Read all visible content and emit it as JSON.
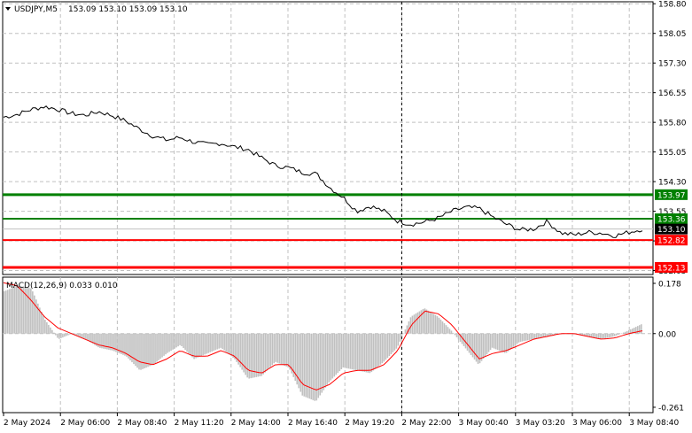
{
  "header": {
    "symbol": "USDJPY,M5",
    "ohlc": "153.09 153.10 153.09 153.10"
  },
  "colors": {
    "price_line": "#000000",
    "support_resistance_green": "#008000",
    "support_resistance_red": "#ff0000",
    "grid": "#c0c0c0",
    "histogram": "#c0c0c0",
    "signal_line": "#ff0000",
    "price_badge": "#000000"
  },
  "chart_data": [
    {
      "type": "line",
      "name": "price",
      "ylim": [
        151.95,
        158.85
      ],
      "yticks": [
        "158.80",
        "158.05",
        "157.30",
        "156.55",
        "155.80",
        "155.05",
        "154.30",
        "153.55",
        "152.80",
        "152.05"
      ],
      "xticks": [
        "2 May 2024",
        "2 May 06:00",
        "2 May 08:40",
        "2 May 11:20",
        "2 May 14:00",
        "2 May 16:40",
        "2 May 19:20",
        "2 May 22:00",
        "3 May 00:40",
        "3 May 03:20",
        "3 May 06:00",
        "3 May 08:40"
      ],
      "y": [
        155.93,
        156.0,
        156.12,
        156.2,
        156.13,
        156.02,
        155.98,
        156.07,
        155.97,
        155.83,
        155.63,
        155.45,
        155.35,
        155.42,
        155.3,
        155.24,
        155.27,
        155.18,
        155.11,
        154.9,
        154.71,
        154.65,
        154.53,
        154.5,
        154.15,
        153.9,
        153.55,
        153.68,
        153.55,
        153.3,
        153.22,
        153.28,
        153.38,
        153.55,
        153.65,
        153.62,
        153.4,
        153.22,
        153.08,
        153.1,
        153.29,
        153.0,
        152.95,
        153.02,
        153.0,
        152.93,
        153.02,
        153.1
      ],
      "levels": [
        {
          "value": "153.97",
          "color": "#008000"
        },
        {
          "value": "153.36",
          "color": "#008000"
        },
        {
          "value": "152.82",
          "color": "#ff0000"
        },
        {
          "value": "152.13",
          "color": "#ff0000"
        }
      ],
      "current_price": "153.10",
      "vertical_marker_at": "2 May 22:00"
    },
    {
      "type": "bar+line",
      "name": "macd",
      "label": "MACD(12,26,9) 0.033 0.010",
      "ylim": [
        -0.28,
        0.2
      ],
      "yticks": [
        "0.178",
        "0.00",
        "-0.261"
      ],
      "histogram": [
        0.15,
        0.17,
        0.16,
        0.05,
        -0.02,
        0.0,
        -0.02,
        -0.05,
        -0.06,
        -0.08,
        -0.13,
        -0.11,
        -0.07,
        -0.04,
        -0.09,
        -0.07,
        -0.05,
        -0.09,
        -0.16,
        -0.15,
        -0.1,
        -0.12,
        -0.22,
        -0.24,
        -0.17,
        -0.12,
        -0.13,
        -0.14,
        -0.1,
        -0.05,
        0.06,
        0.09,
        0.06,
        0.01,
        -0.05,
        -0.11,
        -0.05,
        -0.07,
        -0.03,
        -0.02,
        -0.01,
        0.0,
        0.0,
        -0.01,
        -0.02,
        -0.01,
        0.01,
        0.033
      ],
      "signal": [
        0.18,
        0.17,
        0.12,
        0.06,
        0.02,
        0.0,
        -0.02,
        -0.04,
        -0.05,
        -0.07,
        -0.1,
        -0.11,
        -0.09,
        -0.06,
        -0.08,
        -0.08,
        -0.06,
        -0.08,
        -0.13,
        -0.14,
        -0.11,
        -0.11,
        -0.18,
        -0.2,
        -0.18,
        -0.14,
        -0.13,
        -0.13,
        -0.11,
        -0.06,
        0.03,
        0.08,
        0.07,
        0.03,
        -0.03,
        -0.09,
        -0.07,
        -0.06,
        -0.04,
        -0.02,
        -0.01,
        0.0,
        0.0,
        -0.01,
        -0.02,
        -0.015,
        0.0,
        0.01
      ]
    }
  ]
}
